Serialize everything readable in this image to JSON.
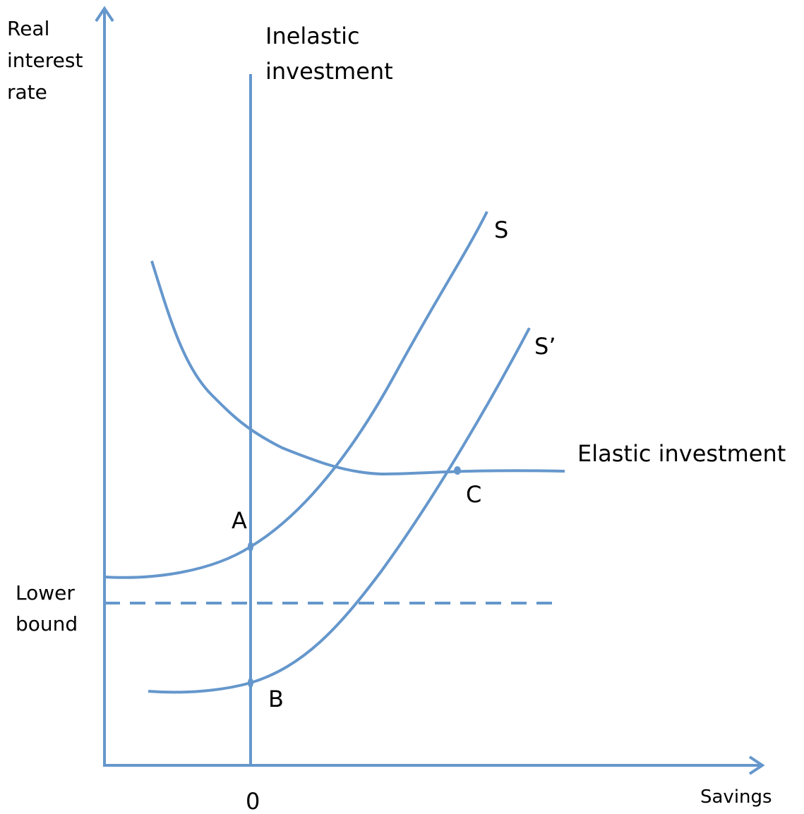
{
  "axes": {
    "y_label": [
      "Real",
      "interest",
      "rate"
    ],
    "x_label": "Savings",
    "origin_label": "0"
  },
  "curves": {
    "inelastic": [
      "Inelastic",
      "investment"
    ],
    "elastic": "Elastic investment",
    "s": "S",
    "s_prime": "S’"
  },
  "lower_bound": [
    "Lower",
    "bound"
  ],
  "points": {
    "a": "A",
    "b": "B",
    "c": "C"
  }
}
